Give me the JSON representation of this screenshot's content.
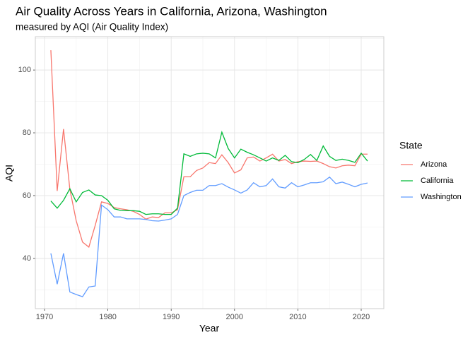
{
  "chart_data": {
    "type": "line",
    "title": "Air Quality Across Years in California, Arizona, Washington",
    "subtitle": "measured by AQI (Air Quality Index)",
    "x_label": "Year",
    "y_label": "AQI",
    "legend_title": "State",
    "legend_position": "right",
    "grid": true,
    "x": [
      1971,
      1972,
      1973,
      1974,
      1975,
      1976,
      1977,
      1978,
      1979,
      1980,
      1981,
      1982,
      1983,
      1984,
      1985,
      1986,
      1987,
      1988,
      1989,
      1990,
      1991,
      1992,
      1993,
      1994,
      1995,
      1996,
      1997,
      1998,
      1999,
      2000,
      2001,
      2002,
      2003,
      2004,
      2005,
      2006,
      2007,
      2008,
      2009,
      2010,
      2011,
      2012,
      2013,
      2014,
      2015,
      2016,
      2017,
      2018,
      2019,
      2020,
      2021
    ],
    "series": [
      {
        "name": "Arizona",
        "color": "#F8766D",
        "values": [
          106.3,
          61.5,
          81.2,
          62,
          52,
          45.2,
          43.6,
          50.5,
          58,
          57.5,
          56.2,
          55.8,
          55.5,
          55,
          54,
          52.5,
          53.2,
          53,
          54.5,
          54.5,
          55.5,
          66,
          66,
          68,
          68.8,
          70.5,
          70.2,
          73,
          70.5,
          67.2,
          68.2,
          72,
          72.3,
          71,
          72,
          73.2,
          71,
          71.5,
          70.2,
          70.8,
          71,
          70.9,
          71,
          70.2,
          69.2,
          68.8,
          69.5,
          69.7,
          69.5,
          73.2,
          73.2
        ]
      },
      {
        "name": "California",
        "color": "#00BA38",
        "values": [
          58.3,
          56,
          58.5,
          62.2,
          58,
          61,
          61.8,
          60.2,
          60,
          58.5,
          55.8,
          55.3,
          55.2,
          55.2,
          55,
          54,
          54.2,
          54.2,
          54,
          54,
          56,
          73.3,
          72.5,
          73.3,
          73.5,
          73.3,
          72,
          80.2,
          75,
          72,
          74.8,
          73.8,
          73,
          72,
          71,
          72,
          71.2,
          72.8,
          70.8,
          70.5,
          71.5,
          73.1,
          71.2,
          75.8,
          72.5,
          71.2,
          71.6,
          71.2,
          70.6,
          73.5,
          71
        ]
      },
      {
        "name": "Washington",
        "color": "#619CFF",
        "values": [
          41.6,
          31.8,
          41.6,
          29.3,
          28.5,
          27.8,
          30.9,
          31.2,
          57,
          55.5,
          53.2,
          53.2,
          52.6,
          52.6,
          52.6,
          52.4,
          52,
          51.9,
          52.2,
          52.6,
          54,
          60,
          61,
          61.7,
          61.7,
          63.2,
          63.2,
          63.8,
          62.7,
          61.8,
          60.8,
          61.8,
          64.1,
          62.8,
          63.2,
          65.3,
          62.8,
          62.4,
          64.1,
          62.8,
          63.4,
          64.1,
          64.1,
          64.4,
          65.9,
          63.8,
          64.3,
          63.6,
          62.8,
          63.6,
          64
        ]
      }
    ],
    "xlim": [
      1968.55,
      2023.57
    ],
    "xticks": [
      1970,
      1980,
      1990,
      2000,
      2010,
      2020
    ],
    "ylim": [
      24.0,
      110.6
    ],
    "yticks": [
      40,
      60,
      80,
      100
    ]
  }
}
